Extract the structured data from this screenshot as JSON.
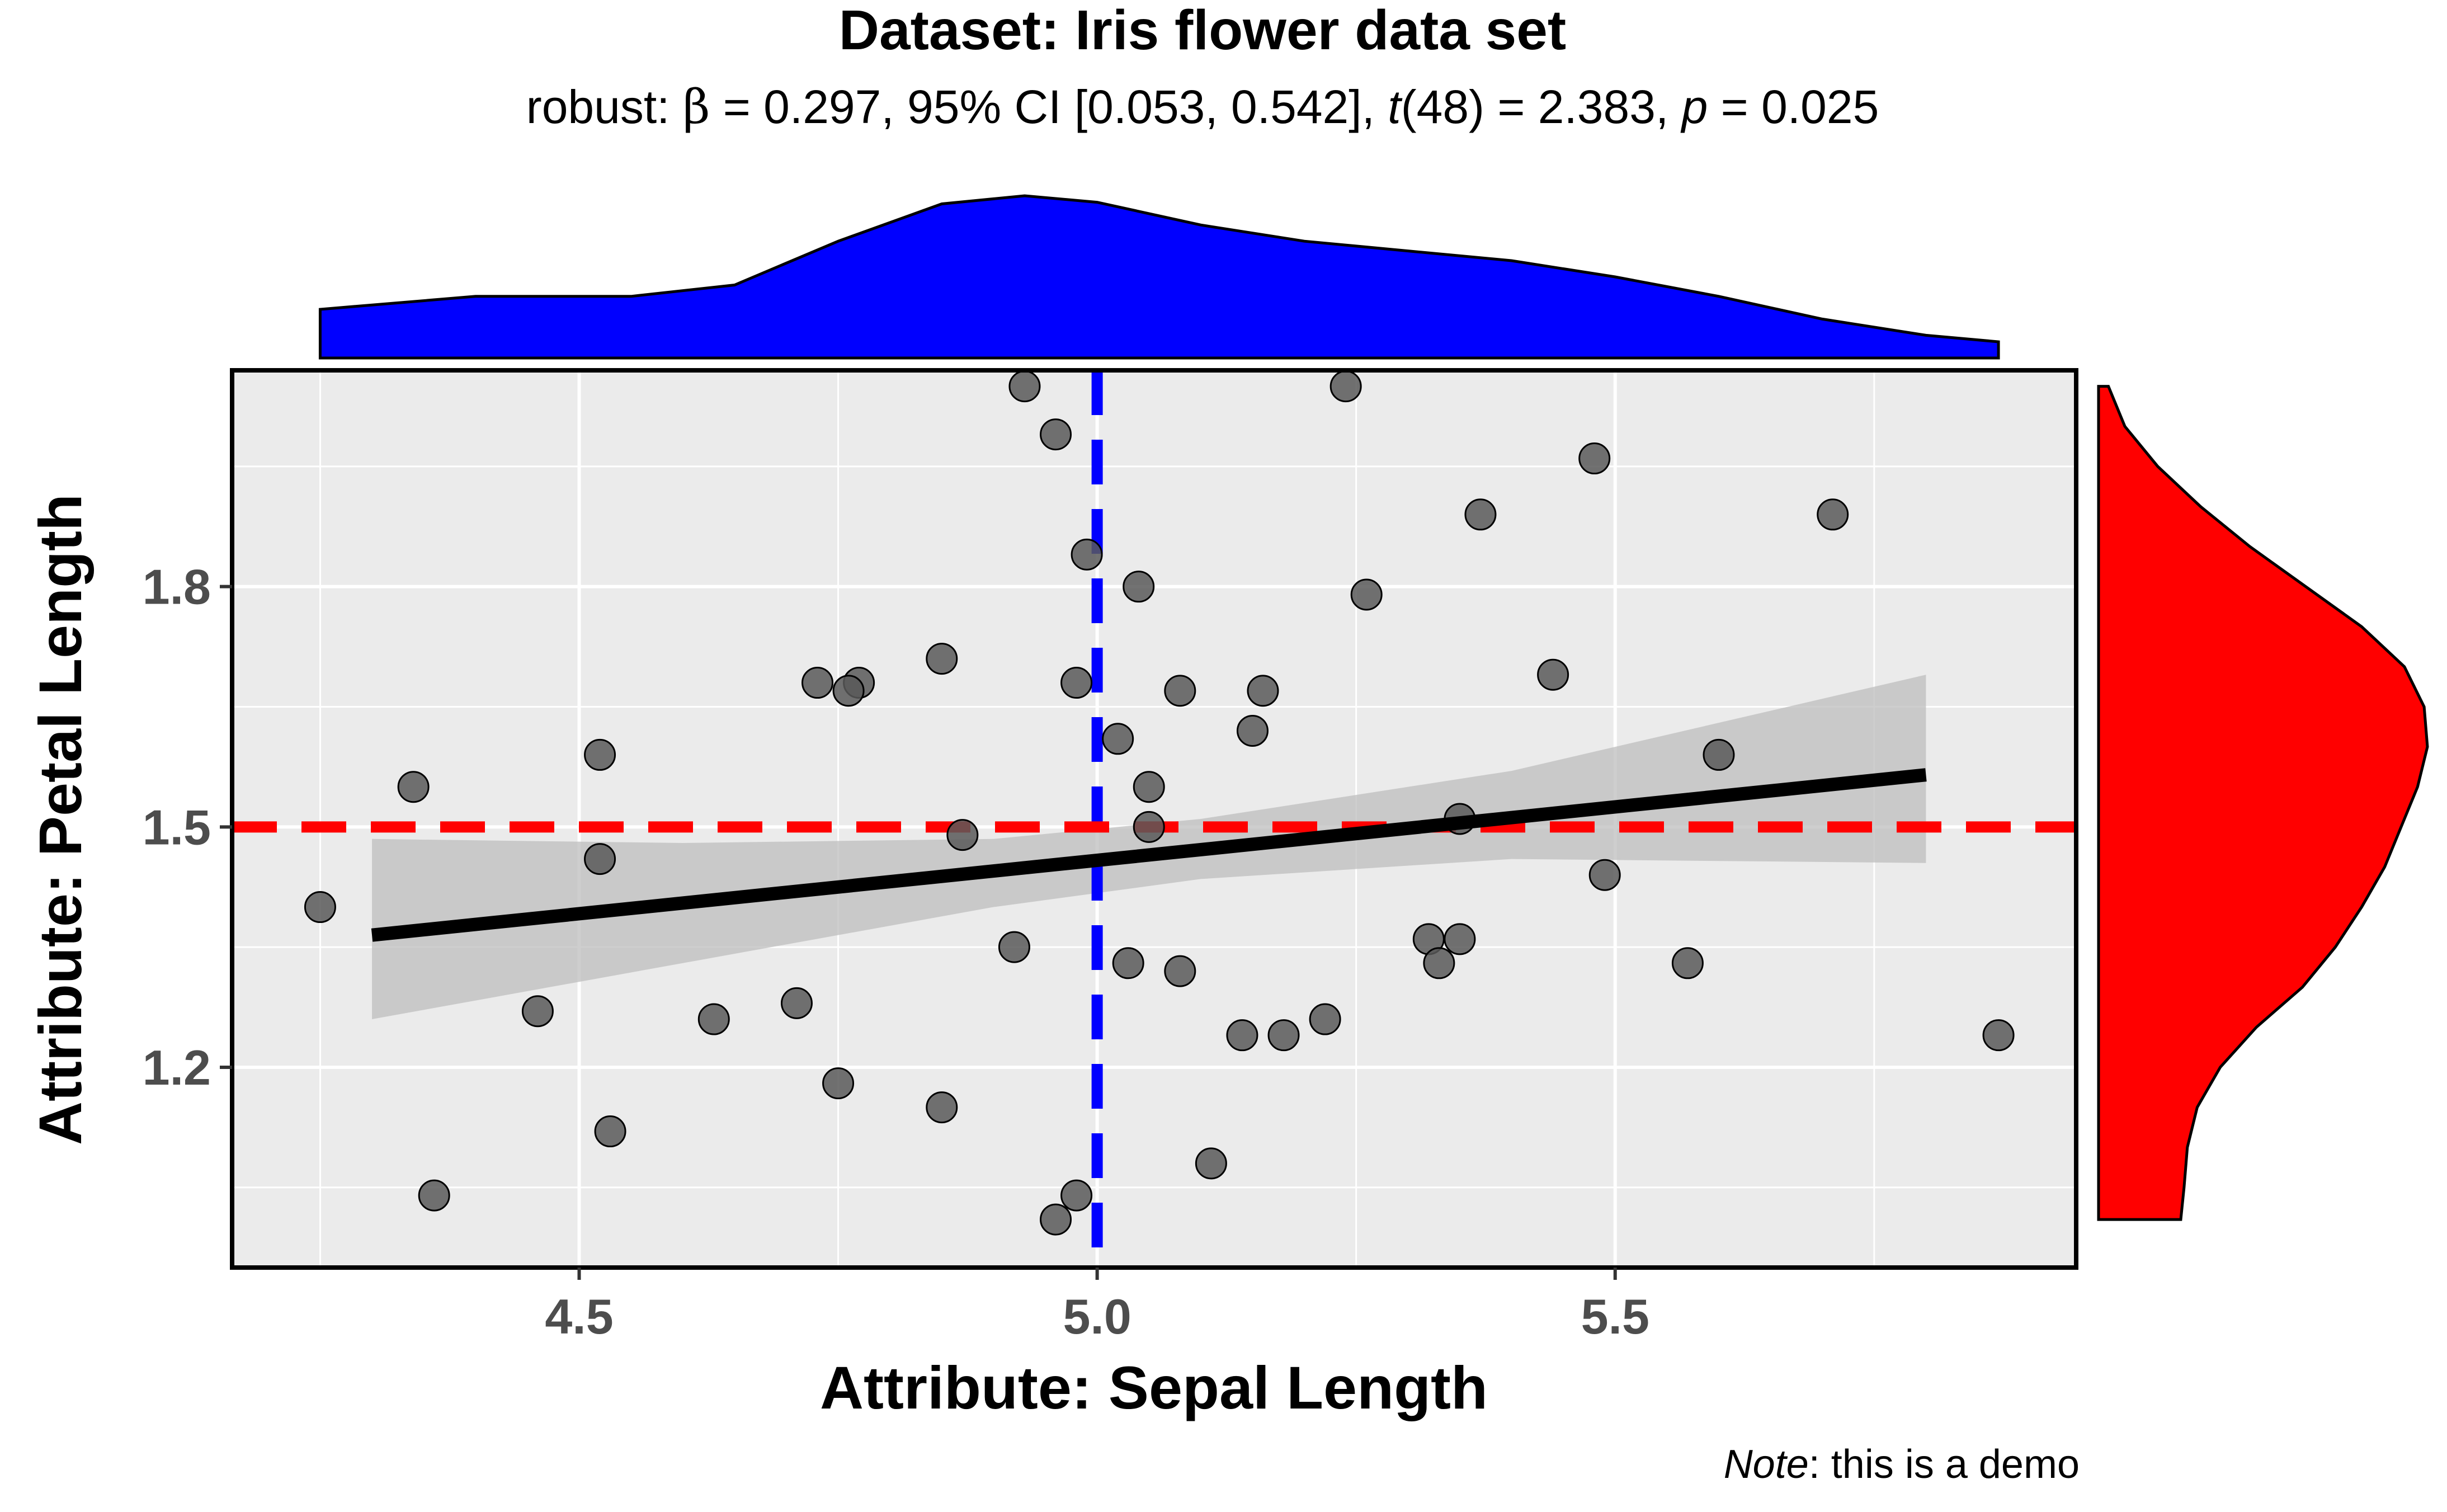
{
  "chart_data": {
    "type": "scatter",
    "title": "Dataset: Iris flower data set",
    "subtitle": {
      "prefix": "robust: ",
      "beta_symbol": "β",
      "beta_part": " = 0.297, 95% CI [0.053, 0.542], ",
      "t_symbol": "t",
      "t_part": "(48) = 2.383, ",
      "p_symbol": "p",
      "p_part": " = 0.025"
    },
    "xlabel": "Attribute: Sepal Length",
    "ylabel": "Attribute: Petal Length",
    "caption": {
      "note_word": "Note",
      "note_rest": ": this is a demo"
    },
    "xlim": [
      4.165,
      5.945
    ],
    "ylim": [
      0.95,
      2.07
    ],
    "x_ticks": [
      4.5,
      5.0,
      5.5
    ],
    "x_tick_labels": [
      "4.5",
      "5.0",
      "5.5"
    ],
    "y_ticks": [
      1.2,
      1.5,
      1.8
    ],
    "y_tick_labels": [
      "1.2",
      "1.5",
      "1.8"
    ],
    "x_minor": [
      4.25,
      4.75,
      5.25,
      5.75
    ],
    "y_minor": [
      1.05,
      1.35,
      1.65,
      1.95
    ],
    "points": [
      {
        "x": 4.93,
        "y": 2.05
      },
      {
        "x": 4.96,
        "y": 1.99
      },
      {
        "x": 5.24,
        "y": 2.05
      },
      {
        "x": 5.48,
        "y": 1.96
      },
      {
        "x": 5.37,
        "y": 1.89
      },
      {
        "x": 5.71,
        "y": 1.89
      },
      {
        "x": 4.99,
        "y": 1.84
      },
      {
        "x": 5.04,
        "y": 1.8
      },
      {
        "x": 5.26,
        "y": 1.79
      },
      {
        "x": 4.85,
        "y": 1.71
      },
      {
        "x": 4.73,
        "y": 1.68
      },
      {
        "x": 4.77,
        "y": 1.68
      },
      {
        "x": 4.76,
        "y": 1.67
      },
      {
        "x": 4.98,
        "y": 1.68
      },
      {
        "x": 5.08,
        "y": 1.67
      },
      {
        "x": 5.16,
        "y": 1.67
      },
      {
        "x": 5.44,
        "y": 1.69
      },
      {
        "x": 5.15,
        "y": 1.62
      },
      {
        "x": 5.02,
        "y": 1.61
      },
      {
        "x": 4.52,
        "y": 1.59
      },
      {
        "x": 5.6,
        "y": 1.59
      },
      {
        "x": 4.34,
        "y": 1.55
      },
      {
        "x": 5.05,
        "y": 1.55
      },
      {
        "x": 5.35,
        "y": 1.51
      },
      {
        "x": 4.87,
        "y": 1.49
      },
      {
        "x": 5.05,
        "y": 1.5
      },
      {
        "x": 4.52,
        "y": 1.46
      },
      {
        "x": 5.49,
        "y": 1.44
      },
      {
        "x": 4.25,
        "y": 1.4
      },
      {
        "x": 5.32,
        "y": 1.36
      },
      {
        "x": 5.35,
        "y": 1.36
      },
      {
        "x": 4.92,
        "y": 1.35
      },
      {
        "x": 5.03,
        "y": 1.33
      },
      {
        "x": 5.08,
        "y": 1.32
      },
      {
        "x": 5.33,
        "y": 1.33
      },
      {
        "x": 5.57,
        "y": 1.33
      },
      {
        "x": 4.71,
        "y": 1.28
      },
      {
        "x": 4.46,
        "y": 1.27
      },
      {
        "x": 4.63,
        "y": 1.26
      },
      {
        "x": 5.22,
        "y": 1.26
      },
      {
        "x": 5.14,
        "y": 1.24
      },
      {
        "x": 5.18,
        "y": 1.24
      },
      {
        "x": 5.87,
        "y": 1.24
      },
      {
        "x": 4.75,
        "y": 1.18
      },
      {
        "x": 4.85,
        "y": 1.15
      },
      {
        "x": 4.53,
        "y": 1.12
      },
      {
        "x": 5.11,
        "y": 1.08
      },
      {
        "x": 4.36,
        "y": 1.04
      },
      {
        "x": 4.98,
        "y": 1.04
      },
      {
        "x": 4.96,
        "y": 1.01
      }
    ],
    "regression": {
      "x0": 4.3,
      "y0": 1.365,
      "x1": 5.8,
      "y1": 1.565
    },
    "ci_band": {
      "x": [
        4.3,
        4.6,
        4.9,
        5.1,
        5.4,
        5.8
      ],
      "lower": [
        1.26,
        1.33,
        1.4,
        1.435,
        1.46,
        1.455
      ],
      "upper": [
        1.485,
        1.48,
        1.485,
        1.51,
        1.57,
        1.69
      ]
    },
    "x_ref_line": 5.0,
    "y_ref_line": 1.5,
    "x_density": {
      "x": [
        4.25,
        4.4,
        4.55,
        4.65,
        4.75,
        4.85,
        4.93,
        5.0,
        5.1,
        5.2,
        5.3,
        5.4,
        5.5,
        5.6,
        5.7,
        5.8,
        5.87
      ],
      "d": [
        0.3,
        0.38,
        0.38,
        0.45,
        0.72,
        0.95,
        1.0,
        0.96,
        0.82,
        0.72,
        0.66,
        0.6,
        0.5,
        0.38,
        0.24,
        0.14,
        0.1
      ]
    },
    "y_density": {
      "y": [
        1.01,
        1.05,
        1.1,
        1.15,
        1.2,
        1.25,
        1.3,
        1.35,
        1.4,
        1.45,
        1.5,
        1.55,
        1.6,
        1.65,
        1.7,
        1.75,
        1.8,
        1.85,
        1.9,
        1.95,
        2.0,
        2.05
      ],
      "d": [
        0.25,
        0.26,
        0.27,
        0.3,
        0.37,
        0.48,
        0.62,
        0.72,
        0.8,
        0.87,
        0.92,
        0.97,
        1.0,
        0.99,
        0.93,
        0.8,
        0.63,
        0.46,
        0.31,
        0.18,
        0.08,
        0.03
      ]
    },
    "colors": {
      "panel": "#ebebeb",
      "grid": "#ffffff",
      "points": "#595959",
      "regression": "#000000",
      "ci_band": "#bebebe",
      "x_ref": "#0000ff",
      "y_ref": "#ff0000",
      "x_density_fill": "#0000ff",
      "y_density_fill": "#ff0000"
    }
  }
}
